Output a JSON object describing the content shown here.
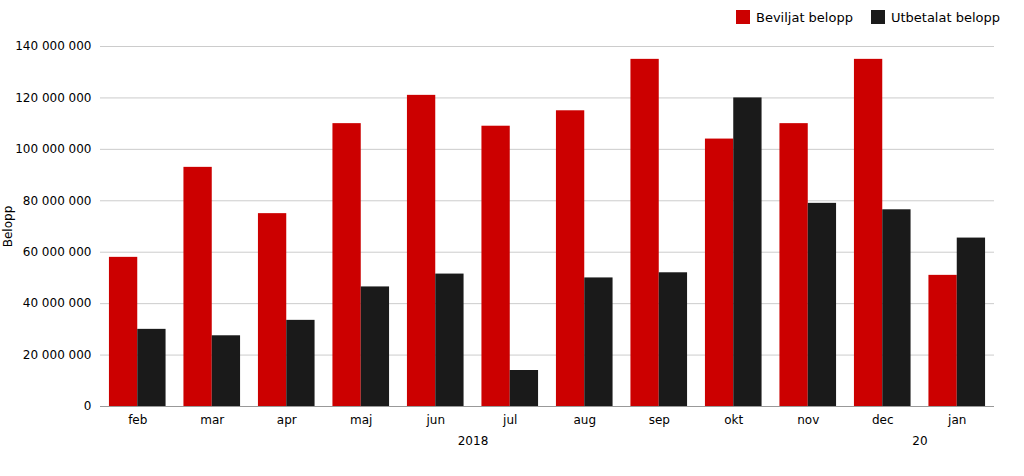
{
  "chart_data": {
    "type": "bar",
    "categories": [
      "feb",
      "mar",
      "apr",
      "maj",
      "jun",
      "jul",
      "aug",
      "sep",
      "okt",
      "nov",
      "dec",
      "jan"
    ],
    "series": [
      {
        "name": "Beviljat belopp",
        "color": "#cc0000",
        "values": [
          58000000,
          93000000,
          75000000,
          110000000,
          121000000,
          109000000,
          115000000,
          135000000,
          104000000,
          110000000,
          135000000,
          51000000
        ]
      },
      {
        "name": "Utbetalat belopp",
        "color": "#1a1a1a",
        "values": [
          30000000,
          27500000,
          33500000,
          46500000,
          51500000,
          14000000,
          50000000,
          52000000,
          120000000,
          79000000,
          76500000,
          65500000
        ]
      }
    ],
    "ylabel": "Belopp",
    "ylim": [
      0,
      140000000
    ],
    "yticks": [
      0,
      {
        "value": 20000000,
        "label": "20 000 000"
      },
      {
        "value": 40000000,
        "label": "40 000 000"
      },
      {
        "value": 60000000,
        "label": "60 000 000"
      },
      {
        "value": 80000000,
        "label": "80 000 000"
      },
      {
        "value": 100000000,
        "label": "100 000 000"
      },
      {
        "value": 120000000,
        "label": "120 000 000"
      },
      {
        "value": 140000000,
        "label": "140 000 000"
      }
    ],
    "annotations": [
      {
        "text": "2018",
        "x": 4.5
      },
      {
        "text": "20",
        "x": 10.5
      }
    ],
    "grid": true,
    "legend": "upper right"
  }
}
